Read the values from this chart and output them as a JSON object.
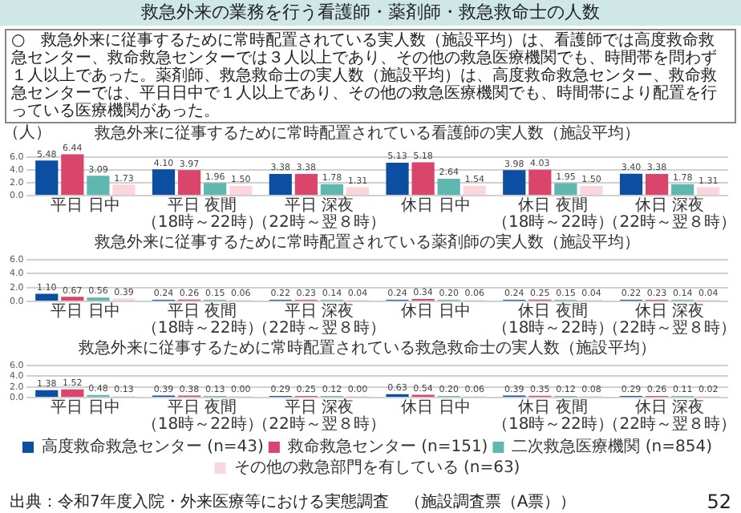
{
  "chart_data": [
    {
      "type": "other",
      "title": "救急外来の業務を行う看護師・薬剤師・救急救命士の人数",
      "annotations": [
        "○　救急外来に従事するために常時配置されている実人数（施設平均）は、看護師では高度救命救急センター、救命救急センターでは３人以上であり、その他の救急医療機関でも、時間帯を問わず１人以上であった。薬剤師、救急救命士の実人数（施設平均）は、高度救命救急センター、救命救急センターでは、平日日中で１人以上であり、その他の救急医療機関でも、時間帯により配置を行っている医療機関があった。"
      ]
    },
    {
      "type": "bar",
      "title": "救急外来に従事するために常時配置されている看護師の実人数（施設平均）",
      "ylabel": "（人）",
      "categories": [
        "平日 日中",
        "平日 夜間（18時～22時）",
        "平日 深夜（22時～翌８時）",
        "休日 日中",
        "休日 夜間（18時～22時）",
        "休日 深夜（22時～翌８時）"
      ],
      "series": [
        {
          "color": "#0b4ea2",
          "values": [
            5.48,
            4.1,
            3.38,
            5.13,
            3.98,
            3.4
          ],
          "value_labels": [
            "5.48",
            "4.10",
            "3.38",
            "5.13",
            "3.98",
            "3.40"
          ]
        },
        {
          "color": "#d9456b",
          "values": [
            6.44,
            3.97,
            3.38,
            5.18,
            4.03,
            3.38
          ],
          "value_labels": [
            "6.44",
            "3.97",
            "3.38",
            "5.18",
            "4.03",
            "3.38"
          ]
        },
        {
          "color": "#5fb8b0",
          "values": [
            3.09,
            1.96,
            1.78,
            2.64,
            1.95,
            1.78
          ],
          "value_labels": [
            "3.09",
            "1.96",
            "1.78",
            "2.64",
            "1.95",
            "1.78"
          ]
        },
        {
          "color": "#fbd7dd",
          "values": [
            1.73,
            1.5,
            1.31,
            1.54,
            1.5,
            1.31
          ],
          "value_labels": [
            "1.73",
            "1.50",
            "1.31",
            "1.54",
            "1.50",
            "1.31"
          ]
        }
      ],
      "ylim": [
        0,
        7
      ],
      "yticks": [
        {
          "value": 0,
          "label": "0.0"
        },
        {
          "value": 2,
          "label": "2.0"
        },
        {
          "value": 4,
          "label": "4.0"
        },
        {
          "value": 6,
          "label": "6.0"
        }
      ],
      "grid": "y",
      "legend": false
    },
    {
      "type": "bar",
      "title": "救急外来に従事するために常時配置されている薬剤師の実人数（施設平均）",
      "categories": [
        "平日 日中",
        "平日 夜間（18時～22時）",
        "平日 深夜（22時～翌８時）",
        "休日 日中",
        "休日 夜間（18時～22時）",
        "休日 深夜（22時～翌８時）"
      ],
      "series": [
        {
          "color": "#0b4ea2",
          "values": [
            1.1,
            0.24,
            0.22,
            0.24,
            0.24,
            0.22
          ],
          "value_labels": [
            "1.10",
            "0.24",
            "0.22",
            "0.24",
            "0.24",
            "0.22"
          ]
        },
        {
          "color": "#d9456b",
          "values": [
            0.67,
            0.26,
            0.23,
            0.34,
            0.25,
            0.23
          ],
          "value_labels": [
            "0.67",
            "0.26",
            "0.23",
            "0.34",
            "0.25",
            "0.23"
          ]
        },
        {
          "color": "#5fb8b0",
          "values": [
            0.56,
            0.15,
            0.14,
            0.2,
            0.15,
            0.14
          ],
          "value_labels": [
            "0.56",
            "0.15",
            "0.14",
            "0.20",
            "0.15",
            "0.14"
          ]
        },
        {
          "color": "#fbd7dd",
          "values": [
            0.39,
            0.06,
            0.04,
            0.06,
            0.04,
            0.04
          ],
          "value_labels": [
            "0.39",
            "0.06",
            "0.04",
            "0.06",
            "0.04",
            "0.04"
          ]
        }
      ],
      "ylim": [
        0,
        6
      ],
      "yticks": [
        {
          "value": 0,
          "label": "0.0"
        },
        {
          "value": 2,
          "label": "2.0"
        },
        {
          "value": 4,
          "label": "4.0"
        },
        {
          "value": 6,
          "label": "6.0"
        }
      ],
      "grid": "y",
      "legend": false
    },
    {
      "type": "bar",
      "title": "救急外来に従事するために常時配置されている救急救命士の実人数（施設平均）",
      "categories": [
        "平日 日中",
        "平日 夜間（18時～22時）",
        "平日 深夜（22時～翌８時）",
        "休日 日中",
        "休日 夜間（18時～22時）",
        "休日 深夜（22時～翌８時）"
      ],
      "series": [
        {
          "name": "高度救命救急センター (n=43)",
          "color": "#0b4ea2",
          "values": [
            1.38,
            0.39,
            0.29,
            0.63,
            0.39,
            0.29
          ],
          "value_labels": [
            "1.38",
            "0.39",
            "0.29",
            "0.63",
            "0.39",
            "0.29"
          ]
        },
        {
          "name": "救命救急センター (n=151)",
          "color": "#d9456b",
          "values": [
            1.52,
            0.38,
            0.25,
            0.54,
            0.35,
            0.26
          ],
          "value_labels": [
            "1.52",
            "0.38",
            "0.25",
            "0.54",
            "0.35",
            "0.26"
          ]
        },
        {
          "name": "二次救急医療機関 (n=854)",
          "color": "#5fb8b0",
          "values": [
            0.48,
            0.13,
            0.12,
            0.2,
            0.12,
            0.11
          ],
          "value_labels": [
            "0.48",
            "0.13",
            "0.12",
            "0.20",
            "0.12",
            "0.11"
          ]
        },
        {
          "name": "その他の救急部門を有している (n=63)",
          "color": "#fbd7dd",
          "values": [
            0.13,
            0.0,
            0.0,
            0.06,
            0.08,
            0.02
          ],
          "value_labels": [
            "0.13",
            "0.00",
            "0.00",
            "0.06",
            "0.08",
            "0.02"
          ]
        }
      ],
      "ylim": [
        0,
        6
      ],
      "yticks": [
        {
          "value": 0,
          "label": "0.0"
        },
        {
          "value": 2,
          "label": "2.0"
        },
        {
          "value": 4,
          "label": "4.0"
        },
        {
          "value": 6,
          "label": "6.0"
        }
      ],
      "grid": "y",
      "legend": "bottom",
      "annotations": [
        "出典：令和7年度入院・外来医療等における実態調査　（施設調査票（A票））",
        "52"
      ]
    }
  ]
}
